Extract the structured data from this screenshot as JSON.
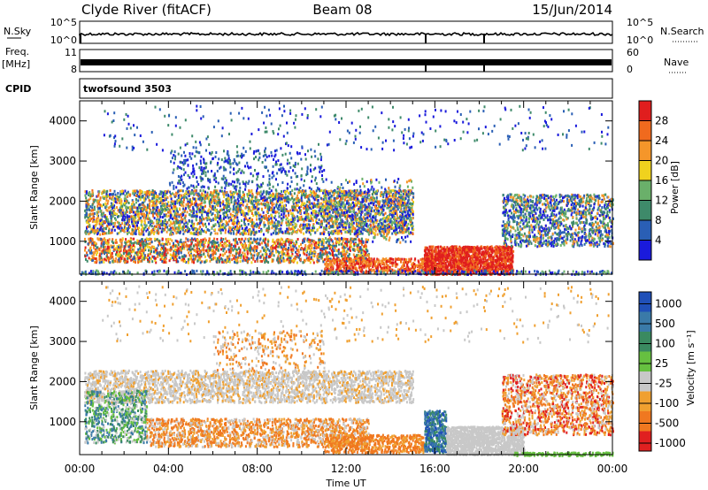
{
  "header": {
    "station": "Clyde River (fitACF)",
    "beam": "Beam 08",
    "date": "15/Jun/2014"
  },
  "top_panels": {
    "nsky": {
      "label": "N.Sky",
      "right_label": "N.Search",
      "y_top": "10^5",
      "y_bottom": "10^0",
      "r_top": "10^5",
      "r_bottom": "10^0"
    },
    "freq": {
      "label_line1": "Freq.",
      "label_line2": "[MHz]",
      "y_top": "11",
      "y_bottom": "8",
      "right_label": "Nave",
      "r_top": "60",
      "r_bottom": "0"
    },
    "cpid": {
      "label": "CPID",
      "program": "twofsound 3503"
    }
  },
  "colors": {
    "power_scale": [
      "#1a1adc",
      "#2a5fb5",
      "#3e8a6a",
      "#6ab06a",
      "#f0d21e",
      "#f5962a",
      "#f06a1e",
      "#e01e1e"
    ],
    "velocity_scale": [
      "#2050b8",
      "#3a7aa8",
      "#3a8a60",
      "#66c040",
      "#c8c8c8",
      "#f0a030",
      "#f07820",
      "#e02020"
    ]
  },
  "chart_data": [
    {
      "type": "heatmap",
      "name": "power",
      "title": "",
      "ylabel": "Slant Range [km]",
      "xlabel": "",
      "colorbar_label": "Power [dB]",
      "colorbar_ticks": [
        "4",
        "8",
        "12",
        "16",
        "20",
        "24",
        "28"
      ],
      "ylim": [
        180,
        4500
      ],
      "xlim_hours": [
        0,
        24
      ],
      "yticks": [
        "1000",
        "2000",
        "3000",
        "4000"
      ],
      "xticks": [
        "00:00",
        "04:00",
        "08:00",
        "12:00",
        "16:00",
        "20:00",
        "00:00"
      ]
    },
    {
      "type": "heatmap",
      "name": "velocity",
      "title": "",
      "ylabel": "Slant Range [km]",
      "xlabel": "Time UT",
      "colorbar_label": "Velocity [m s⁻¹]",
      "colorbar_ticks": [
        "1000",
        "500",
        "100",
        "25",
        "-25",
        "-100",
        "-500",
        "-1000"
      ],
      "ylim": [
        180,
        4500
      ],
      "xlim_hours": [
        0,
        24
      ],
      "yticks": [
        "1000",
        "2000",
        "3000",
        "4000"
      ],
      "xticks": [
        "00:00",
        "04:00",
        "08:00",
        "12:00",
        "16:00",
        "20:00",
        "00:00"
      ]
    }
  ]
}
